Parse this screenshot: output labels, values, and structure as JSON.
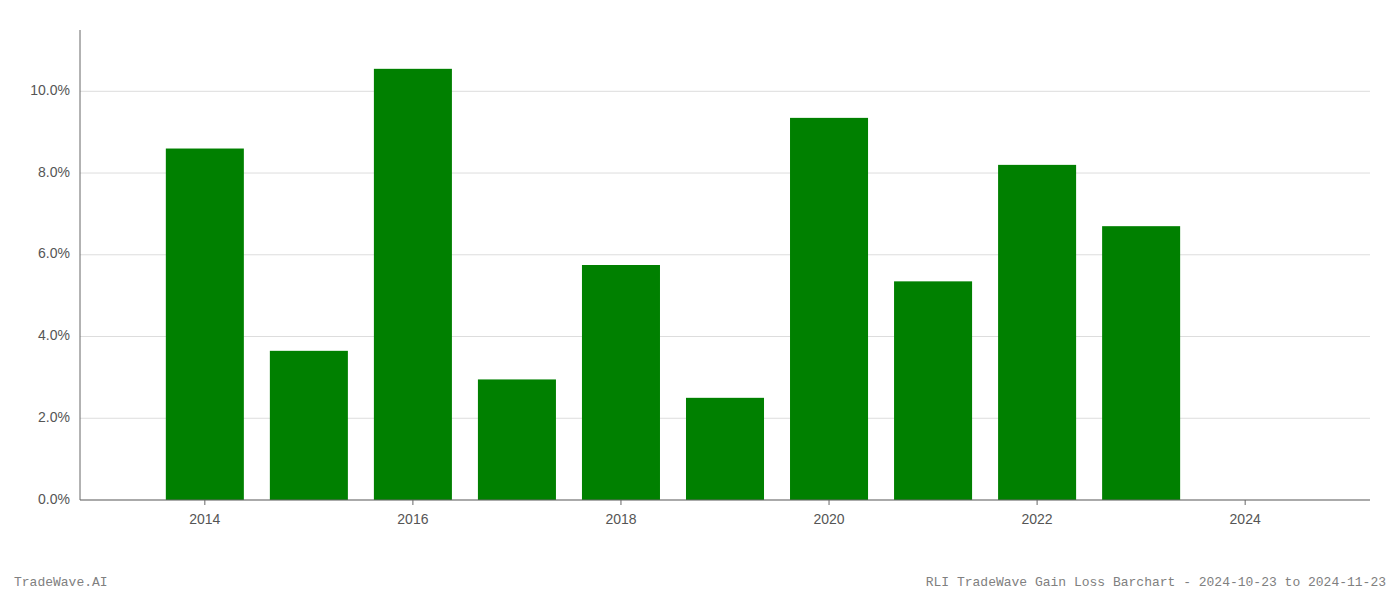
{
  "chart_data": {
    "type": "bar",
    "x": [
      2014,
      2015,
      2016,
      2017,
      2018,
      2019,
      2020,
      2021,
      2022,
      2023
    ],
    "values": [
      0.086,
      0.0365,
      0.1055,
      0.0295,
      0.0575,
      0.025,
      0.0935,
      0.0535,
      0.082,
      0.067
    ],
    "color": "#008000",
    "xlim": [
      2012.8,
      2025.2
    ],
    "xticks": [
      2014,
      2016,
      2018,
      2020,
      2022,
      2024
    ],
    "ylim": [
      0,
      0.115
    ],
    "yticks": [
      {
        "value": 0.0,
        "label": "0.0%"
      },
      {
        "value": 0.02,
        "label": "2.0%"
      },
      {
        "value": 0.04,
        "label": "4.0%"
      },
      {
        "value": 0.06,
        "label": "6.0%"
      },
      {
        "value": 0.08,
        "label": "8.0%"
      },
      {
        "value": 0.1,
        "label": "10.0%"
      }
    ],
    "grid": true,
    "annotations": [
      "TradeWave.AI",
      "RLI TradeWave Gain Loss Barchart - 2024-10-23 to 2024-11-23"
    ]
  }
}
